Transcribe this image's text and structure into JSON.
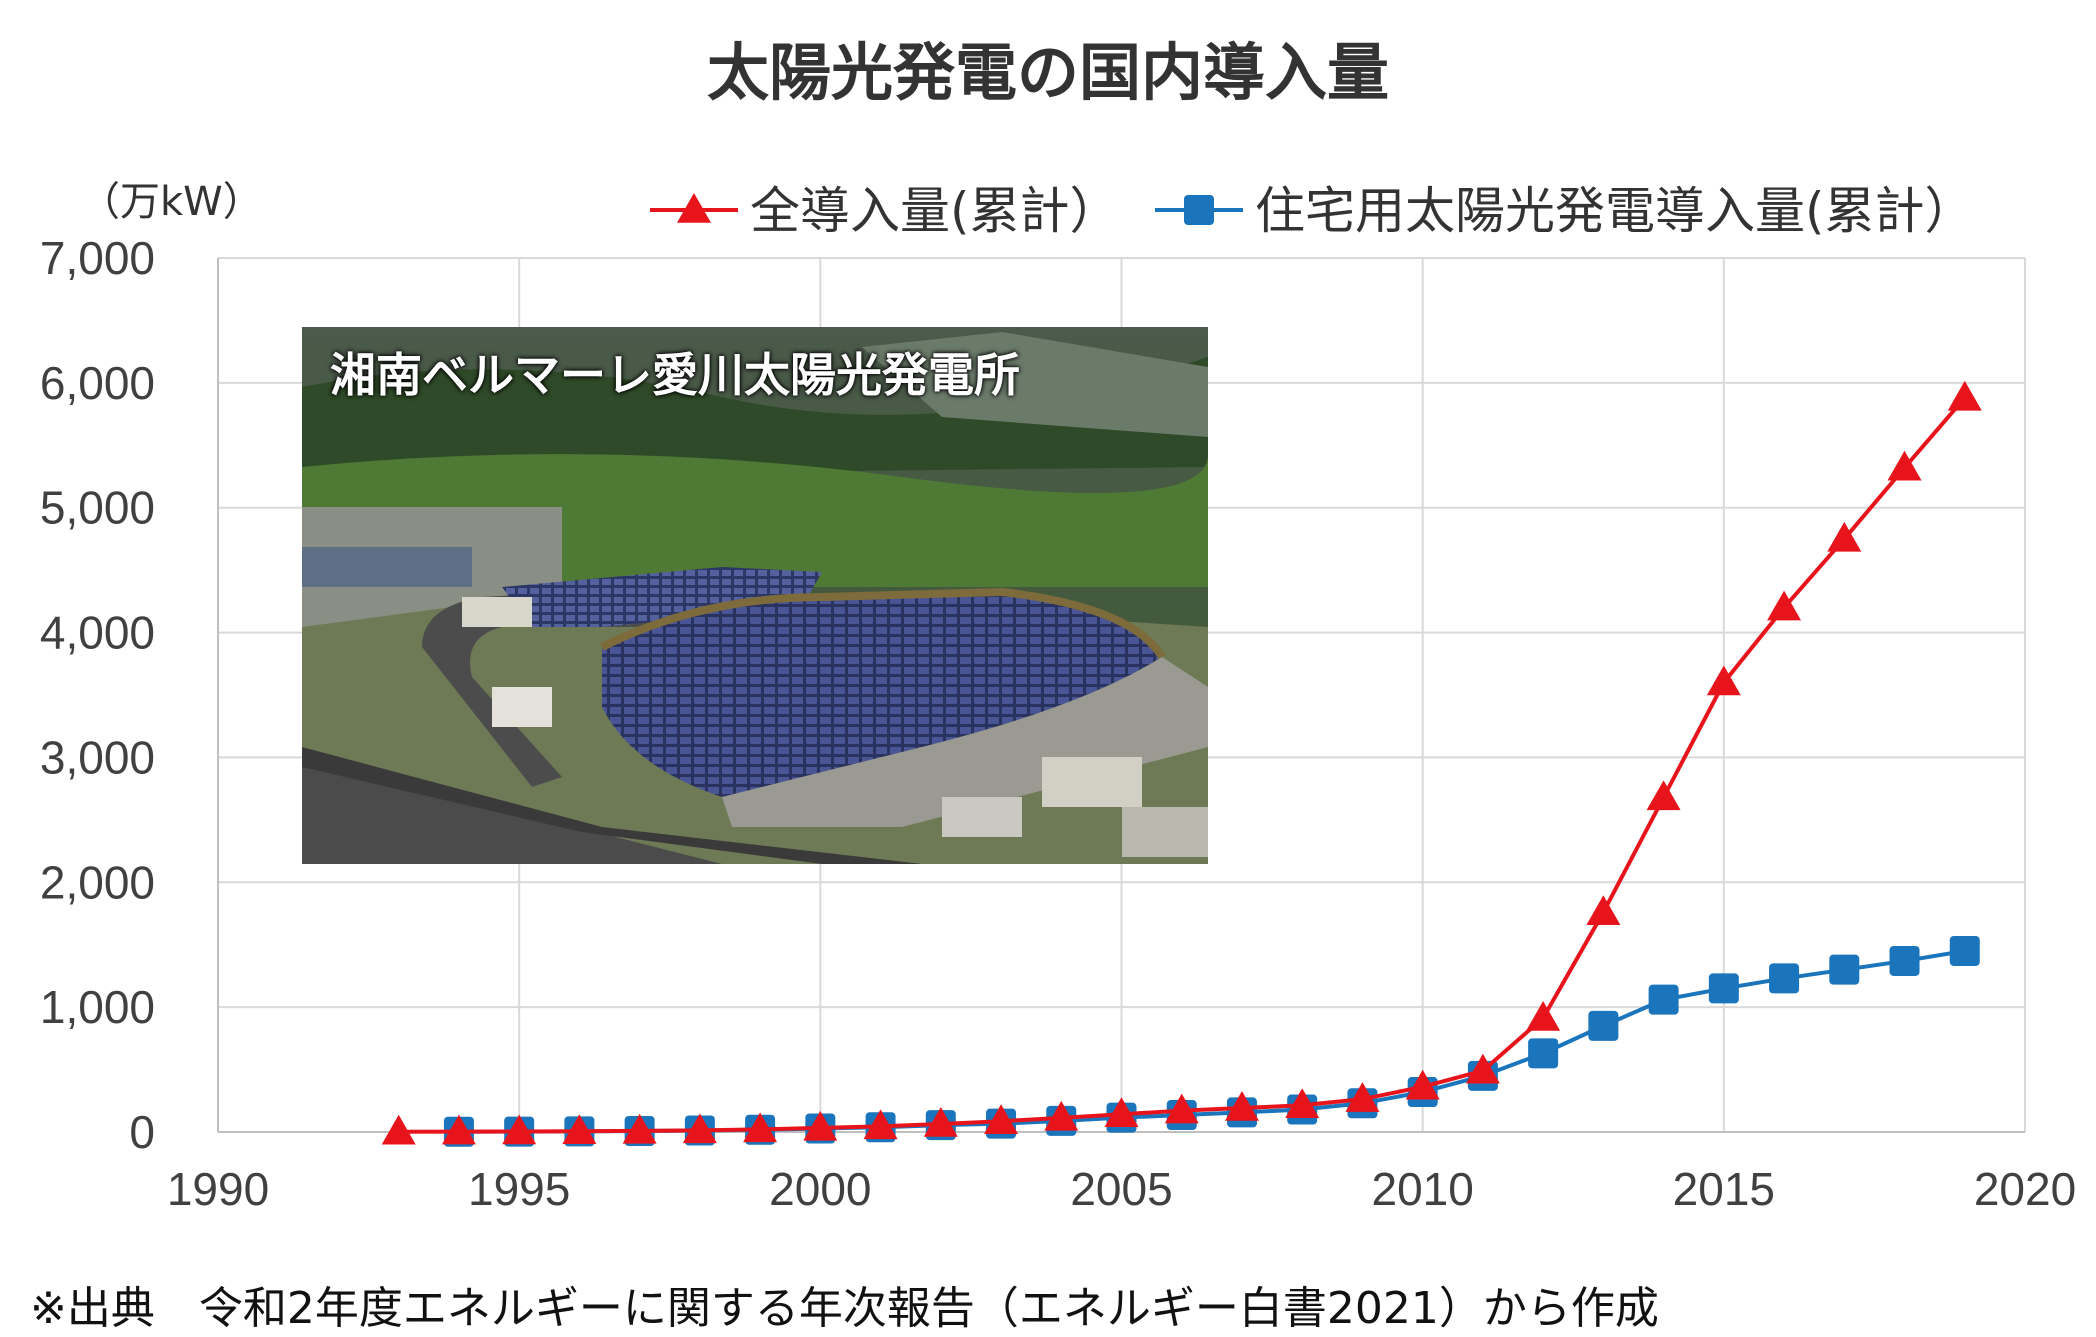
{
  "chart_data": {
    "type": "line",
    "title": "太陽光発電の国内導入量",
    "unit_label": "（万kW）",
    "xlim": [
      1990,
      2020
    ],
    "ylim": [
      0,
      7000
    ],
    "x_ticks": [
      "1990",
      "1995",
      "2000",
      "2005",
      "2010",
      "2015",
      "2020"
    ],
    "y_ticks": [
      "0",
      "1,000",
      "2,000",
      "3,000",
      "4,000",
      "5,000",
      "6,000",
      "7,000"
    ],
    "grid": true,
    "legend_position": "top-right",
    "series": [
      {
        "name": "全導入量(累計）",
        "color": "#e8141c",
        "marker": "triangle",
        "x": [
          1993,
          1994,
          1995,
          1996,
          1997,
          1998,
          1999,
          2000,
          2001,
          2002,
          2003,
          2004,
          2005,
          2006,
          2007,
          2008,
          2009,
          2010,
          2011,
          2012,
          2013,
          2014,
          2015,
          2016,
          2017,
          2018,
          2019
        ],
        "values": [
          2,
          3,
          4,
          6,
          9,
          13,
          21,
          33,
          45,
          64,
          86,
          113,
          142,
          171,
          192,
          214,
          263,
          362,
          491,
          913,
          1760,
          2680,
          3600,
          4200,
          4750,
          5320,
          5880
        ]
      },
      {
        "name": "住宅用太陽光発電導入量(累計）",
        "color": "#1b75bc",
        "marker": "square",
        "x": [
          1994,
          1995,
          1996,
          1997,
          1998,
          1999,
          2000,
          2001,
          2002,
          2003,
          2004,
          2005,
          2006,
          2007,
          2008,
          2009,
          2010,
          2011,
          2012,
          2013,
          2014,
          2015,
          2016,
          2017,
          2018,
          2019
        ],
        "values": [
          2,
          3,
          5,
          8,
          12,
          18,
          28,
          38,
          55,
          67,
          89,
          115,
          136,
          157,
          180,
          230,
          320,
          450,
          630,
          850,
          1060,
          1150,
          1230,
          1300,
          1370,
          1450
        ]
      }
    ]
  },
  "photo": {
    "caption": "湘南ベルマーレ愛川太陽光発電所"
  },
  "footer": {
    "source": "※出典　令和2年度エネルギーに関する年次報告（エネルギー白書2021）から作成"
  }
}
